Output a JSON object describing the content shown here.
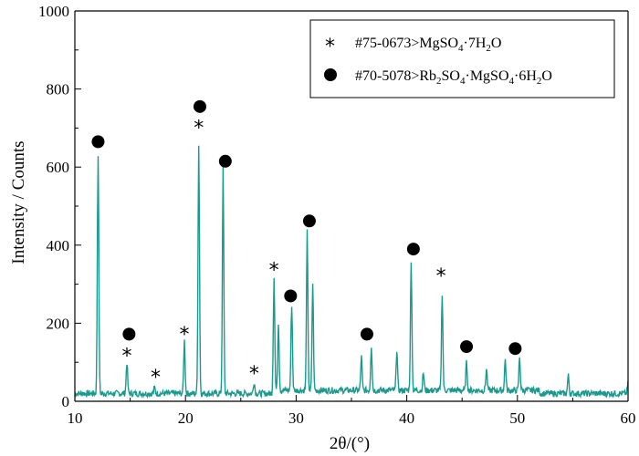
{
  "chart_data": {
    "type": "line",
    "xlabel": "2θ/(°)",
    "ylabel": "Intensity / Counts",
    "xlim": [
      10,
      60
    ],
    "ylim": [
      0,
      1000
    ],
    "xticks": [
      10,
      20,
      30,
      40,
      50,
      60
    ],
    "yticks": [
      0,
      200,
      400,
      600,
      800,
      1000
    ],
    "grid": false,
    "legend_position": "top-right",
    "line_color": "#1a9a8e",
    "legend": [
      {
        "symbol": "*",
        "label": "#75-0673>MgSO₄·7H₂O"
      },
      {
        "symbol": "●",
        "label": "#70-5078>Rb₂SO₄·MgSO₄·6H₂O"
      }
    ],
    "peaks": [
      {
        "x": 12.1,
        "y": 630
      },
      {
        "x": 14.7,
        "y": 95
      },
      {
        "x": 17.2,
        "y": 30
      },
      {
        "x": 19.9,
        "y": 150
      },
      {
        "x": 21.2,
        "y": 650
      },
      {
        "x": 23.4,
        "y": 590
      },
      {
        "x": 26.2,
        "y": 45
      },
      {
        "x": 28.0,
        "y": 310
      },
      {
        "x": 28.4,
        "y": 190
      },
      {
        "x": 29.6,
        "y": 235
      },
      {
        "x": 31.0,
        "y": 420
      },
      {
        "x": 31.5,
        "y": 290
      },
      {
        "x": 35.9,
        "y": 100
      },
      {
        "x": 36.8,
        "y": 130
      },
      {
        "x": 39.1,
        "y": 120
      },
      {
        "x": 40.4,
        "y": 340
      },
      {
        "x": 41.5,
        "y": 60
      },
      {
        "x": 43.2,
        "y": 265
      },
      {
        "x": 45.4,
        "y": 85
      },
      {
        "x": 47.2,
        "y": 70
      },
      {
        "x": 48.9,
        "y": 95
      },
      {
        "x": 50.2,
        "y": 100
      },
      {
        "x": 54.6,
        "y": 60
      },
      {
        "x": 60.0,
        "y": 40
      }
    ],
    "markers": [
      {
        "type": "dot",
        "x": 12.1,
        "y": 665
      },
      {
        "type": "star",
        "x": 14.7,
        "y": 120
      },
      {
        "type": "dot",
        "x": 14.9,
        "y": 172
      },
      {
        "type": "star",
        "x": 17.3,
        "y": 65
      },
      {
        "type": "star",
        "x": 19.9,
        "y": 175
      },
      {
        "type": "star",
        "x": 21.2,
        "y": 705
      },
      {
        "type": "dot",
        "x": 21.3,
        "y": 755
      },
      {
        "type": "dot",
        "x": 23.6,
        "y": 615
      },
      {
        "type": "star",
        "x": 26.2,
        "y": 75
      },
      {
        "type": "star",
        "x": 28.0,
        "y": 340
      },
      {
        "type": "dot",
        "x": 29.5,
        "y": 270
      },
      {
        "type": "dot",
        "x": 31.2,
        "y": 462
      },
      {
        "type": "dot",
        "x": 36.4,
        "y": 172
      },
      {
        "type": "dot",
        "x": 40.6,
        "y": 390
      },
      {
        "type": "star",
        "x": 43.1,
        "y": 325
      },
      {
        "type": "dot",
        "x": 45.4,
        "y": 140
      },
      {
        "type": "dot",
        "x": 49.8,
        "y": 135
      }
    ]
  }
}
